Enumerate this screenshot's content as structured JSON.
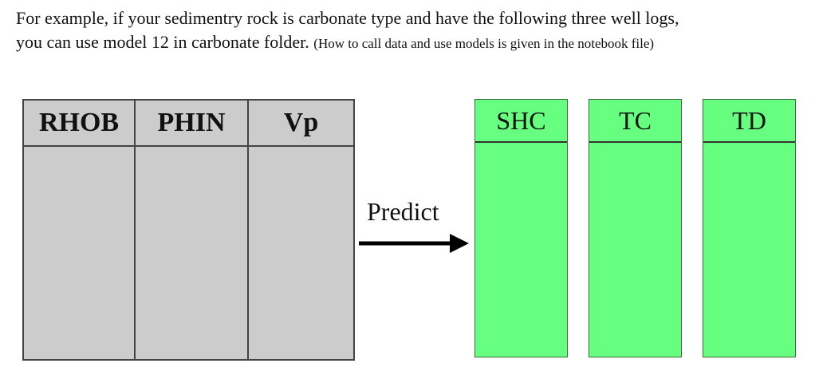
{
  "intro": {
    "line1": "For example, if your sedimentry rock is carbonate type and have the following three well logs,",
    "line2_main": "you can use model 12 in carbonate folder.",
    "line2_note": "(How to call data and use models is given in the notebook file)"
  },
  "input_logs": {
    "columns": [
      "RHOB",
      "PHIN",
      "Vp"
    ]
  },
  "predict_label": "Predict",
  "output_properties": {
    "columns": [
      "SHC",
      "TC",
      "TD"
    ]
  },
  "colors": {
    "input_fill": "#cccccc",
    "output_fill": "#66ff7f",
    "arrow": "#000000"
  },
  "icons": {
    "arrow": "right-arrow-icon"
  }
}
